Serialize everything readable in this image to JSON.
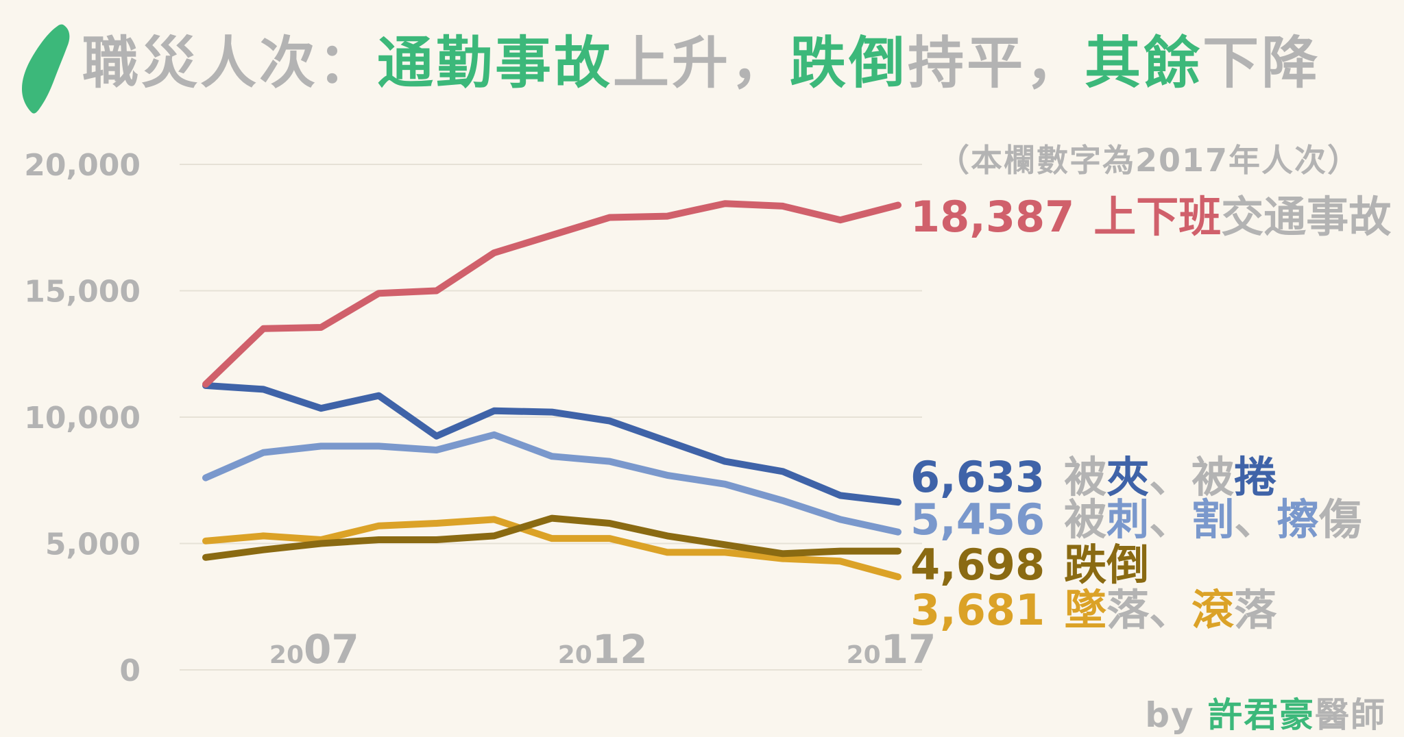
{
  "title": {
    "parts": [
      {
        "text": "職災人次：",
        "color": "#b3b3b3"
      },
      {
        "text": "通勤事故",
        "color": "#3cb87a"
      },
      {
        "text": "上升，",
        "color": "#b3b3b3"
      },
      {
        "text": "跌倒",
        "color": "#3cb87a"
      },
      {
        "text": "持平，",
        "color": "#b3b3b3"
      },
      {
        "text": "其餘",
        "color": "#3cb87a"
      },
      {
        "text": "下降",
        "color": "#b3b3b3"
      }
    ]
  },
  "note": "（本欄數字為2017年人次）",
  "byline": {
    "prefix": "by ",
    "name": "許君豪",
    "suffix": "醫師",
    "prefix_color": "#b3b3b3",
    "name_color": "#3cb87a"
  },
  "colors": {
    "accent": "#3cb87a",
    "muted": "#b3b3b3",
    "grid": "#e6e1d6",
    "background": "#faf6ee"
  },
  "chart_data": {
    "type": "line",
    "x": [
      2005,
      2006,
      2007,
      2008,
      2009,
      2010,
      2011,
      2012,
      2013,
      2014,
      2015,
      2016,
      2017
    ],
    "ylim": [
      0,
      20000
    ],
    "yticks": [
      "0",
      "5,000",
      "10,000",
      "15,000",
      "20,000"
    ],
    "ytick_values": [
      0,
      5000,
      10000,
      15000,
      20000
    ],
    "xticks": [
      {
        "value": 2007,
        "small": "20",
        "big": "07"
      },
      {
        "value": 2012,
        "small": "20",
        "big": "12"
      },
      {
        "value": 2017,
        "small": "20",
        "big": "17"
      }
    ],
    "grid": true,
    "series": [
      {
        "value_label": "18,387",
        "label_parts": [
          {
            "text": "上下班",
            "color": "#d0606b"
          },
          {
            "text": "交通事故",
            "color": "#b3b3b3"
          }
        ],
        "color": "#d0606b",
        "values": [
          11300,
          13500,
          13550,
          14900,
          15000,
          16500,
          17200,
          17900,
          17950,
          18450,
          18350,
          17800,
          18387
        ]
      },
      {
        "value_label": "6,633",
        "label_parts": [
          {
            "text": "被",
            "color": "#b3b3b3"
          },
          {
            "text": "夾",
            "color": "#3f63a8"
          },
          {
            "text": "、被",
            "color": "#b3b3b3"
          },
          {
            "text": "捲",
            "color": "#3f63a8"
          }
        ],
        "color": "#3f63a8",
        "values": [
          11250,
          11100,
          10350,
          10850,
          9250,
          10250,
          10200,
          9850,
          9050,
          8250,
          7850,
          6900,
          6633
        ]
      },
      {
        "value_label": "5,456",
        "label_parts": [
          {
            "text": "被",
            "color": "#b3b3b3"
          },
          {
            "text": "刺",
            "color": "#7a98cc"
          },
          {
            "text": "、",
            "color": "#b3b3b3"
          },
          {
            "text": "割",
            "color": "#7a98cc"
          },
          {
            "text": "、",
            "color": "#b3b3b3"
          },
          {
            "text": "擦",
            "color": "#7a98cc"
          },
          {
            "text": "傷",
            "color": "#b3b3b3"
          }
        ],
        "color": "#7a98cc",
        "values": [
          7600,
          8600,
          8850,
          8850,
          8700,
          9300,
          8450,
          8250,
          7700,
          7350,
          6700,
          5950,
          5456
        ]
      },
      {
        "value_label": "4,698",
        "label_parts": [
          {
            "text": "跌倒",
            "color": "#8a6a12"
          }
        ],
        "color": "#8a6a12",
        "values": [
          4450,
          4750,
          5000,
          5150,
          5150,
          5300,
          6000,
          5800,
          5300,
          4950,
          4600,
          4700,
          4698
        ]
      },
      {
        "value_label": "3,681",
        "label_parts": [
          {
            "text": "墜",
            "color": "#dba227"
          },
          {
            "text": "落、",
            "color": "#b3b3b3"
          },
          {
            "text": "滾",
            "color": "#dba227"
          },
          {
            "text": "落",
            "color": "#b3b3b3"
          }
        ],
        "color": "#dba227",
        "values": [
          5100,
          5300,
          5150,
          5700,
          5800,
          5950,
          5200,
          5200,
          4650,
          4650,
          4400,
          4300,
          3681
        ]
      }
    ]
  }
}
